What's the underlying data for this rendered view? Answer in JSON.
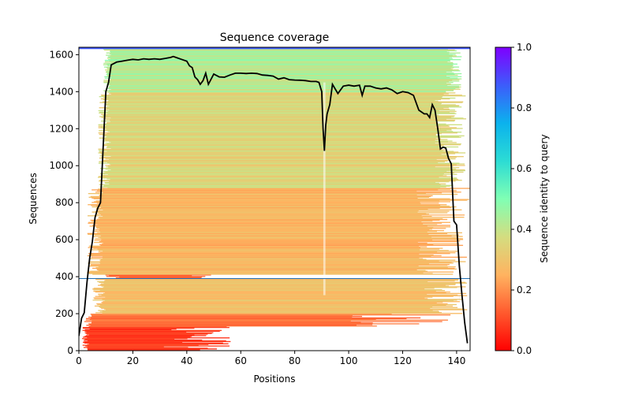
{
  "chart_data": {
    "type": "heatmap",
    "title": "Sequence coverage",
    "xlabel": "Positions",
    "ylabel": "Sequences",
    "xlim": [
      0,
      145
    ],
    "ylim": [
      0,
      1640
    ],
    "xticks": [
      0,
      20,
      40,
      60,
      80,
      100,
      120,
      140
    ],
    "yticks": [
      0,
      200,
      400,
      600,
      800,
      1000,
      1200,
      1400,
      1600
    ],
    "colorbar": {
      "label": "Sequence identity to query",
      "range": [
        0,
        1
      ],
      "ticks": [
        "0.0",
        "0.2",
        "0.4",
        "0.6",
        "0.8",
        "1.0"
      ],
      "colormap": "rainbow_r"
    },
    "coverage_line": {
      "color": "#000000",
      "x": [
        0,
        1,
        2,
        3,
        4,
        5,
        6,
        7,
        8,
        9,
        10,
        11,
        12,
        14,
        16,
        18,
        20,
        22,
        24,
        26,
        28,
        30,
        32,
        34,
        35,
        36,
        38,
        40,
        41,
        42,
        43,
        44,
        45,
        46,
        47,
        48,
        50,
        52,
        54,
        56,
        58,
        60,
        62,
        64,
        66,
        68,
        70,
        72,
        74,
        76,
        78,
        80,
        82,
        84,
        86,
        88,
        89,
        90,
        90.5,
        91,
        91.5,
        92,
        93,
        94,
        96,
        98,
        100,
        102,
        104,
        105,
        106,
        108,
        110,
        112,
        114,
        116,
        118,
        120,
        122,
        124,
        126,
        128,
        129,
        130,
        131,
        132,
        133,
        134,
        135,
        136,
        137,
        138,
        139,
        140,
        141,
        142,
        143,
        144
      ],
      "y": [
        80,
        175,
        205,
        370,
        500,
        590,
        720,
        770,
        800,
        1100,
        1400,
        1450,
        1545,
        1560,
        1565,
        1570,
        1575,
        1572,
        1578,
        1575,
        1578,
        1575,
        1580,
        1585,
        1590,
        1585,
        1575,
        1565,
        1540,
        1530,
        1480,
        1465,
        1440,
        1460,
        1500,
        1440,
        1495,
        1480,
        1478,
        1490,
        1500,
        1500,
        1498,
        1500,
        1498,
        1490,
        1488,
        1484,
        1468,
        1475,
        1465,
        1463,
        1462,
        1460,
        1455,
        1455,
        1450,
        1400,
        1200,
        1080,
        1220,
        1280,
        1330,
        1440,
        1390,
        1430,
        1435,
        1430,
        1435,
        1380,
        1430,
        1430,
        1420,
        1415,
        1420,
        1410,
        1390,
        1400,
        1395,
        1380,
        1300,
        1280,
        1280,
        1260,
        1330,
        1300,
        1200,
        1090,
        1100,
        1095,
        1040,
        1010,
        700,
        680,
        460,
        300,
        150,
        40
      ]
    }
  }
}
